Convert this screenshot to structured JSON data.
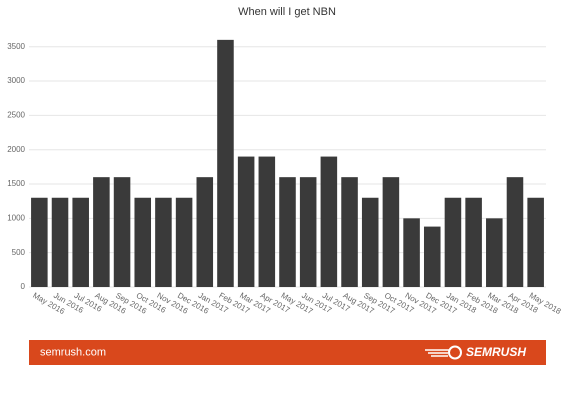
{
  "chart_data": {
    "type": "bar",
    "title": "When will I get NBN",
    "categories": [
      "May 2016",
      "Jun 2016",
      "Jul 2016",
      "Aug 2016",
      "Sep 2016",
      "Oct 2016",
      "Nov 2016",
      "Dec 2016",
      "Jan 2017",
      "Feb 2017",
      "Mar 2017",
      "Apr 2017",
      "May 2017",
      "Jun 2017",
      "Jul 2017",
      "Aug 2017",
      "Sep 2017",
      "Oct 2017",
      "Nov 2017",
      "Dec 2017",
      "Jan 2018",
      "Feb 2018",
      "Mar 2018",
      "Apr 2018",
      "May 2018"
    ],
    "values": [
      1300,
      1300,
      1300,
      1600,
      1600,
      1300,
      1300,
      1300,
      1600,
      3600,
      1900,
      1900,
      1600,
      1600,
      1900,
      1600,
      1300,
      1600,
      1000,
      880,
      1300,
      1300,
      1000,
      1600,
      1300
    ],
    "color": "#3a3a3a",
    "ylim": [
      0,
      3700
    ],
    "yticks": [
      0,
      500,
      1000,
      1500,
      2000,
      2500,
      3000,
      3500
    ],
    "grid": true
  },
  "footer": {
    "site": "semrush.com",
    "brand": "SEMRUSH"
  }
}
